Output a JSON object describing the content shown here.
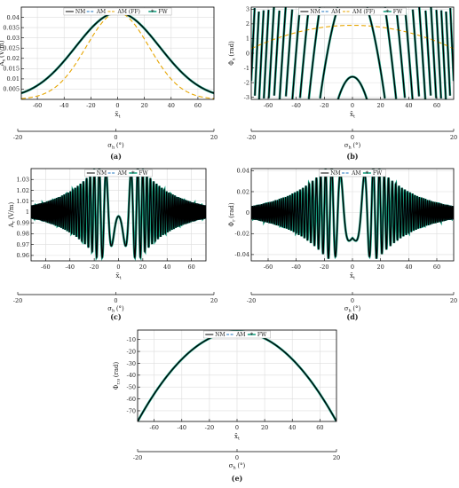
{
  "chart_data": [
    {
      "panel_label": "(a)",
      "type": "line",
      "ylabel": "A",
      "ylabel_sub": "x",
      "ylabel_unit": "(V/m)",
      "xlabel": "x̃",
      "xlabel_sub": "t",
      "xlim": [
        -72,
        72
      ],
      "ylim": [
        0,
        0.045
      ],
      "xticks": [
        "-60",
        "-40",
        "-20",
        "0",
        "20",
        "40",
        "60"
      ],
      "yticks": [
        "0.005",
        "0.01",
        "0.015",
        "0.02",
        "0.025",
        "0.03",
        "0.035",
        "0.04"
      ],
      "ytick_values": [
        0.005,
        0.01,
        0.015,
        0.02,
        0.025,
        0.03,
        0.035,
        0.04
      ],
      "grid": true,
      "legend": [
        "NM",
        "AM",
        "AM (FF)",
        "FW"
      ],
      "legend_placement": "top-center",
      "series_model": {
        "NM": {
          "shape": "gaussian",
          "peak_x": 0,
          "peak_y": 0.0423,
          "value_at_70": 0.0035
        },
        "AM": {
          "shape": "gaussian",
          "peak_x": 0,
          "peak_y": 0.0423,
          "value_at_70": 0.0035
        },
        "AM (FF)": {
          "shape": "gaussian",
          "peak_x": 0,
          "peak_y": 0.0423,
          "value_at_70": 0.0005
        },
        "FW": {
          "shape": "gaussian",
          "peak_x": 0,
          "peak_y": 0.0423,
          "value_at_70": 0.0035
        }
      },
      "secondary_axis": {
        "label": "σ",
        "sub": "h",
        "unit": "(°)",
        "ticks": [
          "-20",
          "0",
          "20"
        ],
        "range": [
          -20,
          20
        ]
      }
    },
    {
      "panel_label": "(b)",
      "type": "line",
      "ylabel": "Φ",
      "ylabel_sub": "x",
      "ylabel_unit": "(rad)",
      "xlabel": "x̃",
      "xlabel_sub": "t",
      "xlim": [
        -72,
        72
      ],
      "ylim": [
        -3.14,
        3.14
      ],
      "xticks": [
        "-60",
        "-40",
        "-20",
        "0",
        "20",
        "40",
        "60"
      ],
      "yticks": [
        "-3",
        "-2",
        "-1",
        "0",
        "1",
        "2",
        "3"
      ],
      "ytick_values": [
        -3,
        -2,
        -1,
        0,
        1,
        2,
        3
      ],
      "grid": true,
      "legend": [
        "NM",
        "AM",
        "AM (FF)",
        "FW"
      ],
      "legend_placement": "top-center",
      "series_model": {
        "NM": {
          "shape": "wrapped-parabola",
          "value_at_0": -1.6,
          "curvature": -0.0146
        },
        "AM": {
          "shape": "wrapped-parabola",
          "value_at_0": -1.6,
          "curvature": -0.0146
        },
        "AM (FF)": {
          "shape": "parabola",
          "value_at_0": 1.9,
          "value_at_70": 0.4
        },
        "FW": {
          "shape": "wrapped-parabola",
          "value_at_0": -1.6,
          "curvature": -0.0146
        }
      },
      "secondary_axis": {
        "label": "σ",
        "sub": "h",
        "unit": "(°)",
        "ticks": [
          "-20",
          "0",
          "20"
        ],
        "range": [
          -20,
          20
        ]
      }
    },
    {
      "panel_label": "(c)",
      "type": "line",
      "ylabel": "A",
      "ylabel_sub": "r",
      "ylabel_unit": "(V/m)",
      "xlabel": "x̃",
      "xlabel_sub": "t",
      "xlim": [
        -72,
        72
      ],
      "ylim": [
        0.955,
        1.04
      ],
      "xticks": [
        "-60",
        "-40",
        "-20",
        "0",
        "20",
        "40",
        "60"
      ],
      "yticks": [
        "0.96",
        "0.97",
        "0.98",
        "0.99",
        "1",
        "1.01",
        "1.02",
        "1.03"
      ],
      "ytick_values": [
        0.96,
        0.97,
        0.98,
        0.99,
        1.0,
        1.01,
        1.02,
        1.03
      ],
      "grid": true,
      "legend": [
        "NM",
        "AM",
        "FW"
      ],
      "legend_placement": "top-center",
      "series_model": {
        "NM": {
          "shape": "chirped-oscillation",
          "baseline": 1.0,
          "value_at_0": 0.993,
          "extrema": [
            0.958,
            1.038
          ]
        },
        "AM": {
          "shape": "chirped-oscillation",
          "baseline": 1.0,
          "value_at_0": 0.993,
          "extrema": [
            0.958,
            1.038
          ]
        },
        "FW": {
          "shape": "chirped-oscillation",
          "baseline": 1.0,
          "value_at_0": 0.993,
          "extrema": [
            0.958,
            1.038
          ]
        }
      },
      "secondary_axis": {
        "label": "σ",
        "sub": "h",
        "unit": "(°)",
        "ticks": [
          "-20",
          "0",
          "20"
        ],
        "range": [
          -20,
          20
        ]
      }
    },
    {
      "panel_label": "(d)",
      "type": "line",
      "ylabel": "Φ",
      "ylabel_sub": "r",
      "ylabel_unit": "(rad)",
      "xlabel": "x̃",
      "xlabel_sub": "t",
      "xlim": [
        -72,
        72
      ],
      "ylim": [
        -0.046,
        0.042
      ],
      "xticks": [
        "-60",
        "-40",
        "-20",
        "0",
        "20",
        "40",
        "60"
      ],
      "yticks": [
        "-0.04",
        "-0.02",
        "0",
        "0.02",
        "0.04"
      ],
      "ytick_values": [
        -0.04,
        -0.02,
        0,
        0.02,
        0.04
      ],
      "grid": true,
      "legend": [
        "NM",
        "AM",
        "FW"
      ],
      "legend_placement": "top-center",
      "series_model": {
        "NM": {
          "shape": "chirped-oscillation",
          "baseline": 0.0,
          "value_at_0": -0.044,
          "extrema": [
            -0.044,
            0.04
          ]
        },
        "AM": {
          "shape": "chirped-oscillation",
          "baseline": 0.0,
          "value_at_0": -0.044,
          "extrema": [
            -0.044,
            0.04
          ]
        },
        "FW": {
          "shape": "chirped-oscillation",
          "baseline": 0.0,
          "value_at_0": -0.044,
          "extrema": [
            -0.044,
            0.04
          ]
        }
      },
      "secondary_axis": {
        "label": "σ",
        "sub": "h",
        "unit": "(°)",
        "ticks": [
          "-20",
          "0",
          "20"
        ],
        "range": [
          -20,
          20
        ]
      }
    },
    {
      "panel_label": "(e)",
      "type": "line",
      "ylabel": "Φ",
      "ylabel_sub": "r,u",
      "ylabel_unit": "(rad)",
      "xlabel": "x̃",
      "xlabel_sub": "t",
      "xlim": [
        -72,
        72
      ],
      "ylim": [
        -79,
        -2
      ],
      "xticks": [
        "-60",
        "-40",
        "-20",
        "0",
        "20",
        "40",
        "60"
      ],
      "yticks": [
        "-10",
        "-20",
        "-30",
        "-40",
        "-50",
        "-60",
        "-70"
      ],
      "ytick_values": [
        -10,
        -20,
        -30,
        -40,
        -50,
        -60,
        -70
      ],
      "grid": true,
      "legend": [
        "NM",
        "AM",
        "FW"
      ],
      "legend_placement": "top-center",
      "series_model": {
        "NM": {
          "shape": "parabola",
          "value_at_0": -3.2,
          "value_at_72": -79
        },
        "AM": {
          "shape": "parabola",
          "value_at_0": -3.2,
          "value_at_72": -79
        },
        "FW": {
          "shape": "parabola",
          "value_at_0": -3.2,
          "value_at_72": -79
        }
      },
      "secondary_axis": {
        "label": "σ",
        "sub": "h",
        "unit": "(°)",
        "ticks": [
          "-20",
          "0",
          "20"
        ],
        "range": [
          -20,
          20
        ]
      }
    }
  ],
  "series_styles": {
    "NM": {
      "color": "#000000",
      "dash": "none",
      "marker": "none"
    },
    "AM": {
      "color": "#1e73be",
      "dash": "5,3",
      "marker": "none"
    },
    "AM (FF)": {
      "color": "#e6a500",
      "dash": "5,3",
      "marker": "none"
    },
    "FW": {
      "color": "#1aa383",
      "dash": "none",
      "marker": "asterisk"
    }
  }
}
